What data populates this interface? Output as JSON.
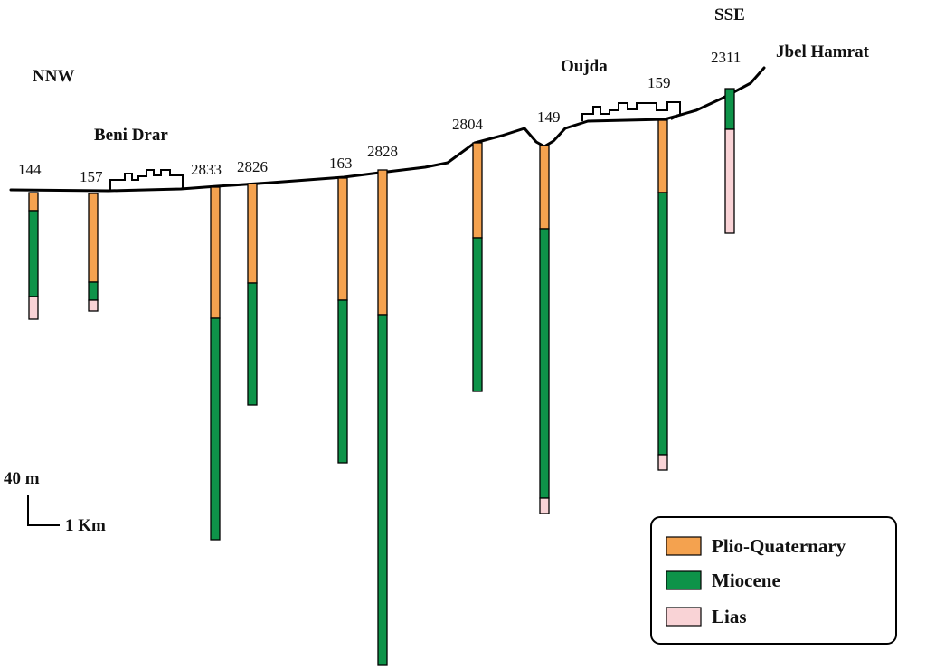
{
  "directions": {
    "left": "NNW",
    "right": "SSE"
  },
  "places": {
    "beni_drar": "Beni Drar",
    "oujda": "Oujda",
    "jbel_hamrat": "Jbel Hamrat"
  },
  "scale": {
    "vertical": "40 m",
    "horizontal": "1 Km"
  },
  "legend": [
    {
      "key": "plio",
      "label": "Plio-Quaternary",
      "color": "#f4a24f"
    },
    {
      "key": "mio",
      "label": "Miocene",
      "color": "#0e9349"
    },
    {
      "key": "lias",
      "label": "Lias",
      "color": "#f9d3d6"
    }
  ],
  "wells": [
    {
      "id": "144",
      "plio": 20,
      "mio": 95,
      "lias": 25
    },
    {
      "id": "157",
      "plio": 98,
      "mio": 20,
      "lias": 12
    },
    {
      "id": "2833",
      "plio": 145,
      "mio": 245,
      "lias": 0
    },
    {
      "id": "2826",
      "plio": 110,
      "mio": 135,
      "lias": 0
    },
    {
      "id": "163",
      "plio": 135,
      "mio": 180,
      "lias": 0
    },
    {
      "id": "2828",
      "plio": 160,
      "mio": 388,
      "lias": 0
    },
    {
      "id": "2804",
      "plio": 105,
      "mio": 170,
      "lias": 0
    },
    {
      "id": "149",
      "plio": 92,
      "mio": 298,
      "lias": 17
    },
    {
      "id": "159",
      "plio": 80,
      "mio": 290,
      "lias": 17
    },
    {
      "id": "2311",
      "plio": 0,
      "mio": 45,
      "lias": 115
    }
  ]
}
